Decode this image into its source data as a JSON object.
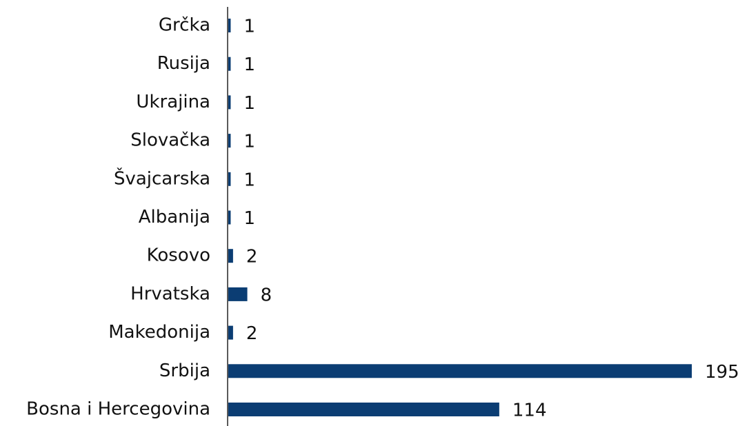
{
  "chart_data": {
    "type": "bar",
    "orientation": "horizontal",
    "categories": [
      "Grčka",
      "Rusija",
      "Ukrajina",
      "Slovačka",
      "Švajcarska",
      "Albanija",
      "Kosovo",
      "Hrvatska",
      "Makedonija",
      "Srbija",
      "Bosna i Hercegovina"
    ],
    "values": [
      1,
      1,
      1,
      1,
      1,
      1,
      2,
      8,
      2,
      195,
      114
    ],
    "color": "#0b3d73",
    "xlim": [
      0,
      195
    ]
  }
}
